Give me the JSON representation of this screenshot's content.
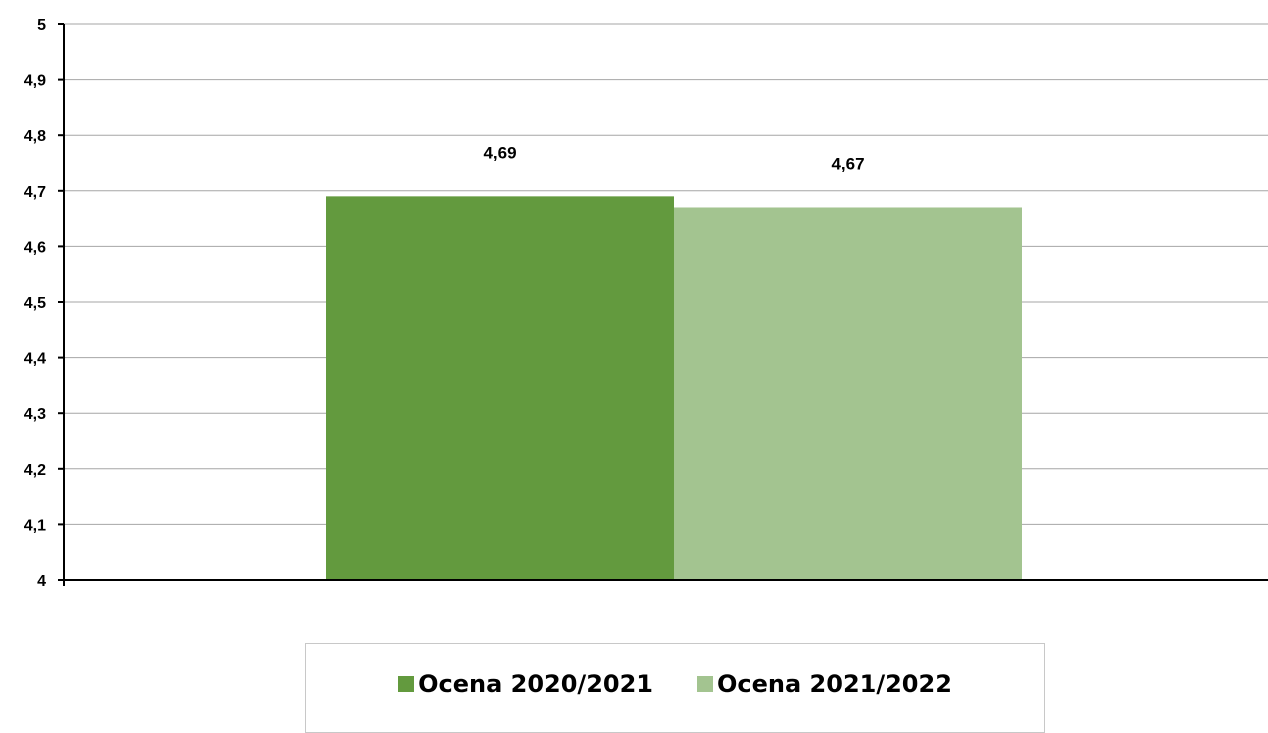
{
  "chart_data": {
    "type": "bar",
    "categories": [
      ""
    ],
    "series": [
      {
        "name": "Ocena 2020/2021",
        "values": [
          4.69
        ],
        "label": "4,69",
        "color": "#639a3e"
      },
      {
        "name": "Ocena 2021/2022",
        "values": [
          4.67
        ],
        "label": "4,67",
        "color": "#a3c490"
      }
    ],
    "ylim": [
      4,
      5
    ],
    "yticks": [
      4,
      4.1,
      4.2,
      4.3,
      4.4,
      4.5,
      4.6,
      4.7,
      4.8,
      4.9,
      5
    ],
    "ytick_labels": [
      "4",
      "4,1",
      "4,2",
      "4,3",
      "4,4",
      "4,5",
      "4,6",
      "4,7",
      "4,8",
      "4,9",
      "5"
    ],
    "grid": true,
    "legend_position": "bottom",
    "title": "",
    "xlabel": "",
    "ylabel": ""
  }
}
